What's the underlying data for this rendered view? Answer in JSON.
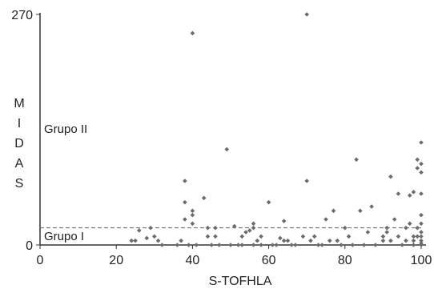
{
  "chart_data": {
    "type": "scatter",
    "xlabel": "S-TOFHLA",
    "ylabel": "MIDAS",
    "xlim": [
      0,
      100
    ],
    "ylim": [
      0,
      270
    ],
    "xticks": [
      "0",
      "20",
      "40",
      "60",
      "80",
      "100"
    ],
    "yticks": [
      "0",
      "270"
    ],
    "grid": false,
    "threshold": 20,
    "annotations": [
      "Grupo II",
      "Grupo I"
    ],
    "points": [
      [
        24,
        5
      ],
      [
        25,
        5
      ],
      [
        26,
        17
      ],
      [
        28,
        8
      ],
      [
        29,
        20
      ],
      [
        30,
        10
      ],
      [
        31,
        5
      ],
      [
        32,
        0
      ],
      [
        36,
        0
      ],
      [
        37,
        5
      ],
      [
        38,
        75
      ],
      [
        38,
        50
      ],
      [
        38,
        30
      ],
      [
        39,
        0
      ],
      [
        40,
        248
      ],
      [
        40,
        40
      ],
      [
        40,
        35
      ],
      [
        40,
        25
      ],
      [
        41,
        0
      ],
      [
        43,
        55
      ],
      [
        44,
        20
      ],
      [
        44,
        10
      ],
      [
        45,
        0
      ],
      [
        46,
        10
      ],
      [
        46,
        20
      ],
      [
        47,
        0
      ],
      [
        49,
        112
      ],
      [
        50,
        0
      ],
      [
        51,
        22
      ],
      [
        52,
        0
      ],
      [
        53,
        0
      ],
      [
        53,
        10
      ],
      [
        54,
        15
      ],
      [
        55,
        17
      ],
      [
        56,
        0
      ],
      [
        56,
        25
      ],
      [
        56,
        20
      ],
      [
        57,
        5
      ],
      [
        58,
        0
      ],
      [
        58,
        10
      ],
      [
        60,
        50
      ],
      [
        61,
        0
      ],
      [
        62,
        0
      ],
      [
        63,
        8
      ],
      [
        64,
        5
      ],
      [
        64,
        28
      ],
      [
        65,
        5
      ],
      [
        66,
        0
      ],
      [
        67,
        0
      ],
      [
        69,
        10
      ],
      [
        70,
        270
      ],
      [
        70,
        75
      ],
      [
        71,
        5
      ],
      [
        72,
        10
      ],
      [
        73,
        0
      ],
      [
        74,
        0
      ],
      [
        75,
        30
      ],
      [
        76,
        5
      ],
      [
        77,
        40
      ],
      [
        78,
        5
      ],
      [
        79,
        0
      ],
      [
        80,
        20
      ],
      [
        81,
        10
      ],
      [
        82,
        0
      ],
      [
        83,
        100
      ],
      [
        84,
        40
      ],
      [
        85,
        0
      ],
      [
        86,
        15
      ],
      [
        87,
        45
      ],
      [
        88,
        0
      ],
      [
        90,
        5
      ],
      [
        90,
        10
      ],
      [
        91,
        15
      ],
      [
        91,
        20
      ],
      [
        92,
        80
      ],
      [
        92,
        5
      ],
      [
        93,
        30
      ],
      [
        94,
        60
      ],
      [
        94,
        10
      ],
      [
        95,
        0
      ],
      [
        96,
        20
      ],
      [
        96,
        5
      ],
      [
        97,
        25
      ],
      [
        97,
        58
      ],
      [
        98,
        62
      ],
      [
        98,
        0
      ],
      [
        98,
        10
      ],
      [
        98,
        5
      ],
      [
        99,
        20
      ],
      [
        99,
        10
      ],
      [
        99,
        100
      ],
      [
        99,
        90
      ],
      [
        100,
        120
      ],
      [
        100,
        95
      ],
      [
        100,
        85
      ],
      [
        100,
        60
      ],
      [
        100,
        35
      ],
      [
        100,
        25
      ],
      [
        100,
        15
      ],
      [
        100,
        10
      ],
      [
        100,
        5
      ],
      [
        100,
        2
      ],
      [
        100,
        0
      ]
    ]
  }
}
